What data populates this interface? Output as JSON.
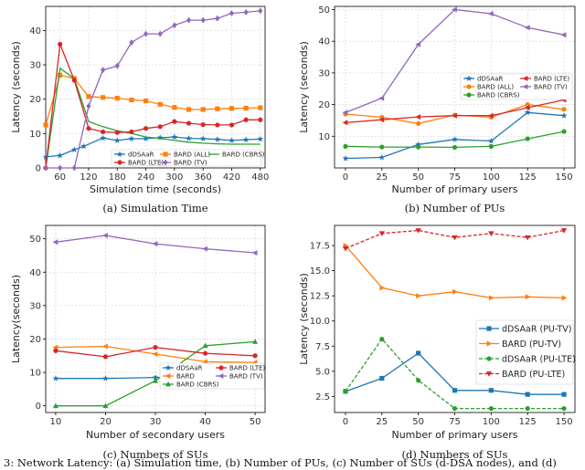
{
  "figure_caption": "3: Network Latency: (a) Simulation time, (b) Number of PUs, (c) Number of SUs (d-DSA nodes), and (d)",
  "chart_data": [
    {
      "type": "line",
      "id": "a",
      "caption": "(a) Simulation Time",
      "xlabel": "Simulation time (seconds)",
      "ylabel": "Latency (seconds)",
      "xlim": [
        30,
        490
      ],
      "ylim": [
        0,
        47
      ],
      "xticks": [
        60,
        120,
        180,
        240,
        300,
        360,
        420,
        480
      ],
      "yticks": [
        0,
        10,
        20,
        30,
        40
      ],
      "grid": true,
      "legend_position": "bottom-right",
      "series": [
        {
          "name": "dDSAaR",
          "color": "#1f77b4",
          "marker": "star",
          "x": [
            30,
            60,
            90,
            110,
            150,
            180,
            210,
            240,
            270,
            300,
            330,
            360,
            390,
            420,
            450,
            480
          ],
          "y": [
            3.2,
            3.6,
            5.3,
            6.3,
            8.7,
            8.0,
            8.5,
            8.5,
            8.8,
            9.0,
            8.6,
            8.5,
            8.3,
            8.0,
            8.2,
            8.4
          ]
        },
        {
          "name": "BARD (ALL)",
          "color": "#ff7f0e",
          "marker": "square",
          "x": [
            30,
            60,
            90,
            120,
            150,
            180,
            210,
            240,
            270,
            300,
            330,
            360,
            390,
            420,
            450,
            480
          ],
          "y": [
            12.5,
            27.0,
            26.0,
            20.8,
            20.5,
            20.3,
            19.8,
            19.5,
            18.5,
            17.6,
            17.0,
            17.0,
            17.2,
            17.3,
            17.4,
            17.5
          ]
        },
        {
          "name": "BARD (CBRS)",
          "color": "#2ca02c",
          "marker": "none",
          "x": [
            30,
            60,
            90,
            120,
            150,
            180,
            210,
            240,
            270,
            300,
            330,
            360,
            390,
            420,
            450,
            480
          ],
          "y": [
            0,
            29.0,
            26.0,
            13.5,
            12.0,
            10.8,
            10.0,
            9.0,
            8.6,
            8.0,
            7.5,
            7.2,
            7.0,
            6.9,
            6.9,
            6.9
          ]
        },
        {
          "name": "BARD (LTE)",
          "color": "#d62728",
          "marker": "circle",
          "x": [
            30,
            60,
            90,
            120,
            150,
            180,
            210,
            240,
            270,
            300,
            330,
            360,
            390,
            420,
            450,
            480
          ],
          "y": [
            0,
            36.0,
            25.5,
            11.5,
            10.5,
            10.3,
            10.5,
            11.5,
            12.0,
            13.5,
            13.0,
            12.6,
            12.5,
            12.5,
            14.0,
            14.0
          ]
        },
        {
          "name": "BARD (TV)",
          "color": "#9467bd",
          "marker": "diamond",
          "x": [
            30,
            60,
            90,
            120,
            150,
            180,
            210,
            240,
            270,
            300,
            330,
            360,
            390,
            420,
            450,
            480
          ],
          "y": [
            0,
            0,
            0,
            18.0,
            28.5,
            29.7,
            36.5,
            39.0,
            39.0,
            41.5,
            43.0,
            43.0,
            43.5,
            45.0,
            45.3,
            45.7
          ]
        }
      ]
    },
    {
      "type": "line",
      "id": "b",
      "caption": "(b) Number of PUs",
      "xlabel": "Number of primary users",
      "ylabel": "Latency (seconds)",
      "xlim": [
        -7.5,
        157.5
      ],
      "ylim": [
        0,
        51
      ],
      "xticks": [
        0,
        25,
        50,
        75,
        100,
        125,
        150
      ],
      "yticks": [
        10,
        20,
        30,
        40,
        50
      ],
      "grid": true,
      "legend_position": "center-left",
      "series": [
        {
          "name": "dDSAaR",
          "color": "#1f77b4",
          "marker": "star",
          "x": [
            0,
            25,
            50,
            75,
            100,
            125,
            150
          ],
          "y": [
            3.0,
            3.3,
            7.4,
            9.0,
            8.5,
            17.5,
            16.5
          ]
        },
        {
          "name": "BARD (ALL)",
          "color": "#ff7f0e",
          "marker": "circle",
          "x": [
            0,
            25,
            50,
            75,
            100,
            125,
            150
          ],
          "y": [
            17.0,
            16.0,
            14.0,
            16.7,
            16.0,
            20.0,
            18.5
          ]
        },
        {
          "name": "BARD (CBRS)",
          "color": "#2ca02c",
          "marker": "circle",
          "x": [
            0,
            25,
            50,
            75,
            100,
            125,
            150
          ],
          "y": [
            6.8,
            6.6,
            6.6,
            6.5,
            6.8,
            9.2,
            11.5
          ]
        },
        {
          "name": "BARD (LTE)",
          "color": "#d62728",
          "marker": "arrow-left",
          "x": [
            0,
            25,
            50,
            75,
            100,
            125,
            150
          ],
          "y": [
            14.3,
            15.2,
            16.1,
            16.5,
            16.5,
            19.0,
            21.5
          ]
        },
        {
          "name": "BARD (TV)",
          "color": "#9467bd",
          "marker": "arrow-left",
          "x": [
            0,
            25,
            50,
            75,
            100,
            125,
            150
          ],
          "y": [
            17.5,
            22.0,
            39.0,
            50.0,
            48.7,
            44.3,
            42.0
          ]
        }
      ]
    },
    {
      "type": "line",
      "id": "c",
      "caption": "(c) Numbers of SUs",
      "xlabel": "Number of secondary users",
      "ylabel": "Latency(seconds)",
      "xlim": [
        8,
        52
      ],
      "ylim": [
        -2,
        54
      ],
      "xticks": [
        10,
        20,
        30,
        40,
        50
      ],
      "yticks": [
        0,
        10,
        20,
        30,
        40,
        50
      ],
      "grid": true,
      "legend_position": "lower-middle",
      "series": [
        {
          "name": "dDSAaR",
          "color": "#1f77b4",
          "marker": "star",
          "x": [
            10,
            20,
            30,
            40,
            50
          ],
          "y": [
            8.2,
            8.2,
            8.5,
            8.7,
            8.5
          ]
        },
        {
          "name": "BARD",
          "color": "#ff7f0e",
          "marker": "arrow-left",
          "x": [
            10,
            20,
            30,
            40,
            50
          ],
          "y": [
            17.5,
            17.8,
            15.5,
            13.2,
            13.0
          ]
        },
        {
          "name": "BARD (CBRS)",
          "color": "#2ca02c",
          "marker": "triangle-up",
          "x": [
            10,
            20,
            30,
            40,
            50
          ],
          "y": [
            0,
            0,
            7.5,
            18.0,
            19.2
          ]
        },
        {
          "name": "BARD (LTE)",
          "color": "#d62728",
          "marker": "circle",
          "x": [
            10,
            20,
            30,
            40,
            50
          ],
          "y": [
            16.5,
            14.7,
            17.5,
            15.7,
            15.0
          ]
        },
        {
          "name": "BARD (TV)",
          "color": "#9467bd",
          "marker": "arrow-left",
          "x": [
            10,
            20,
            30,
            40,
            50
          ],
          "y": [
            49.0,
            51.0,
            48.5,
            47.0,
            45.8
          ]
        }
      ]
    },
    {
      "type": "line",
      "id": "d",
      "caption": "(d) Numbers of SUs",
      "xlabel": "Number of primary users",
      "ylabel": "Latency (seconds)",
      "xlim": [
        -7.5,
        157.5
      ],
      "ylim": [
        0.9,
        19.5
      ],
      "xticks": [
        0,
        25,
        50,
        75,
        100,
        125,
        150
      ],
      "yticks": [
        2.5,
        5.0,
        7.5,
        10.0,
        12.5,
        15.0,
        17.5
      ],
      "ytick_labels": [
        "2.5",
        "5.0",
        "7.5",
        "10.0",
        "12.5",
        "15.0",
        "17.5"
      ],
      "grid": false,
      "legend_position": "center-right",
      "series": [
        {
          "name": "dDSAaR (PU-TV)",
          "color": "#1f77b4",
          "marker": "square",
          "dash": "solid",
          "x": [
            0,
            25,
            50,
            75,
            100,
            125,
            150
          ],
          "y": [
            3.0,
            4.3,
            6.8,
            3.1,
            3.1,
            2.7,
            2.7
          ]
        },
        {
          "name": "BARD (PU-TV)",
          "color": "#ff7f0e",
          "marker": "arrow-right",
          "dash": "solid",
          "x": [
            0,
            25,
            50,
            75,
            100,
            125,
            150
          ],
          "y": [
            17.5,
            13.3,
            12.5,
            12.9,
            12.3,
            12.4,
            12.3
          ]
        },
        {
          "name": "dDSAaR (PU-LTE)",
          "color": "#2ca02c",
          "marker": "circle",
          "dash": "dashed",
          "x": [
            0,
            25,
            50,
            75,
            100,
            125,
            150
          ],
          "y": [
            3.0,
            8.2,
            4.1,
            1.3,
            1.3,
            1.3,
            1.3
          ]
        },
        {
          "name": "BARD (PU-LTE)",
          "color": "#d62728",
          "marker": "triangle-down",
          "dash": "dashed",
          "x": [
            0,
            25,
            50,
            75,
            100,
            125,
            150
          ],
          "y": [
            17.2,
            18.7,
            19.0,
            18.3,
            18.7,
            18.3,
            19.0
          ]
        }
      ]
    }
  ]
}
